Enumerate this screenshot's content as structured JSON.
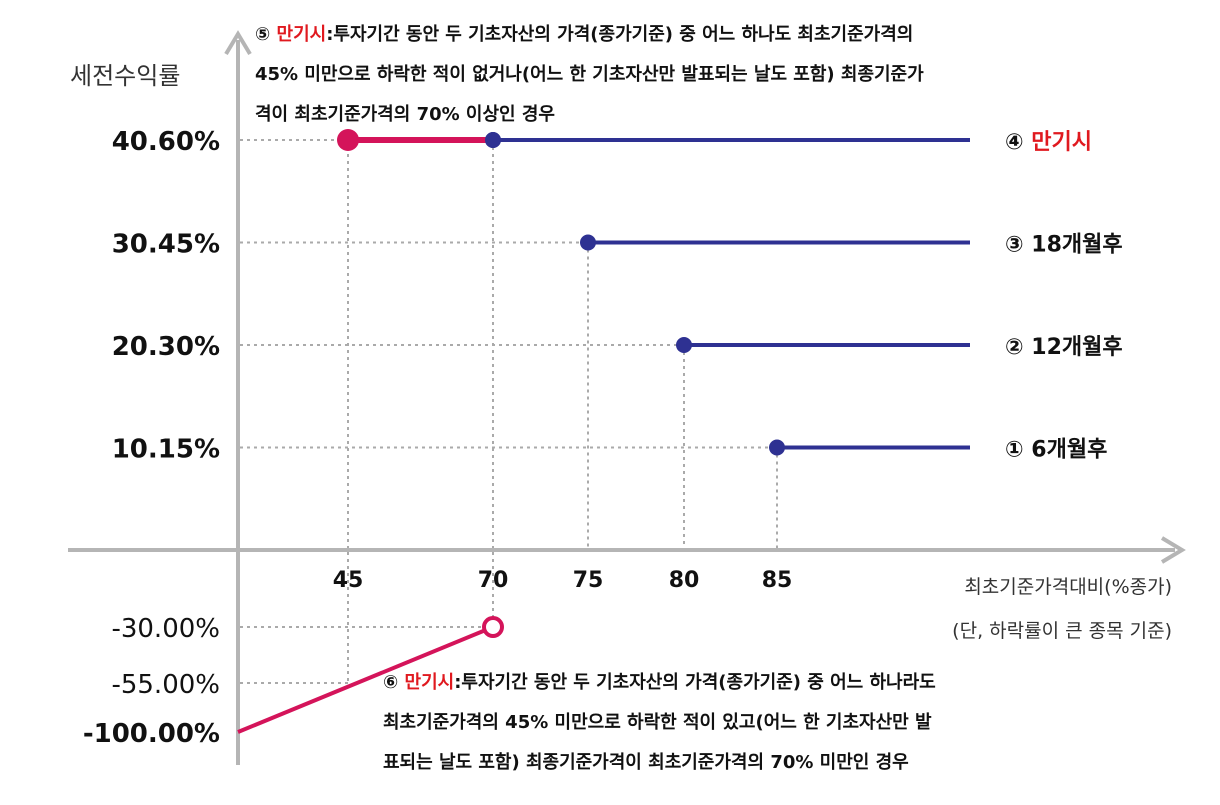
{
  "chart_data": {
    "type": "line",
    "ylabel": "세전수익률",
    "xlabel": "최초기준가격대비(%종가)",
    "xlabel_note": "(단, 하락률이 큰 종목 기준)",
    "x_ticks": [
      "45",
      "70",
      "75",
      "80",
      "85"
    ],
    "y_ticks_positive": [
      "40.60%",
      "30.45%",
      "20.30%",
      "10.15%"
    ],
    "y_ticks_negative": [
      "-30.00%",
      "-55.00%",
      "-100.00%"
    ],
    "colors": {
      "autocall": "#2e3192",
      "maturity_gain": "#d4145a",
      "maturity_loss": "#d4145a",
      "grid": "#aaaaaa",
      "axis": "#b5b5b5"
    },
    "series": [
      {
        "name": "① 6개월후",
        "start_x": 85,
        "y": 10.15
      },
      {
        "name": "② 12개월후",
        "start_x": 80,
        "y": 20.3
      },
      {
        "name": "③ 18개월후",
        "start_x": 75,
        "y": 30.45
      },
      {
        "name_prefix": "④ ",
        "name_red": "만기시",
        "start_x": 70,
        "y": 40.6
      }
    ],
    "maturity_gain": {
      "start_x": 45,
      "end_x": 70,
      "y": 40.6
    },
    "maturity_loss": {
      "points": [
        [
          0,
          -100.0
        ],
        [
          70,
          -30.0
        ]
      ],
      "open_end": true
    },
    "note5": {
      "prefix": "⑤ ",
      "red": "만기시",
      "lines": [
        ":투자기간 동안 두 기초자산의 가격(종가기준) 중 어느 하나도 최초기준가격의",
        "45% 미만으로 하락한 적이 없거나(어느 한 기초자산만 발표되는 날도 포함) 최종기준가",
        "격이 최초기준가격의 70% 이상인 경우"
      ]
    },
    "note6": {
      "prefix": "⑥ ",
      "red": "만기시",
      "lines": [
        ":투자기간 동안 두 기초자산의 가격(종가기준) 중 어느 하나라도",
        "최초기준가격의 45% 미만으로 하락한 적이 있고(어느 한 기초자산만 발",
        "표되는 날도 포함) 최종기준가격이 최초기준가격의 70% 미만인 경우"
      ]
    }
  }
}
